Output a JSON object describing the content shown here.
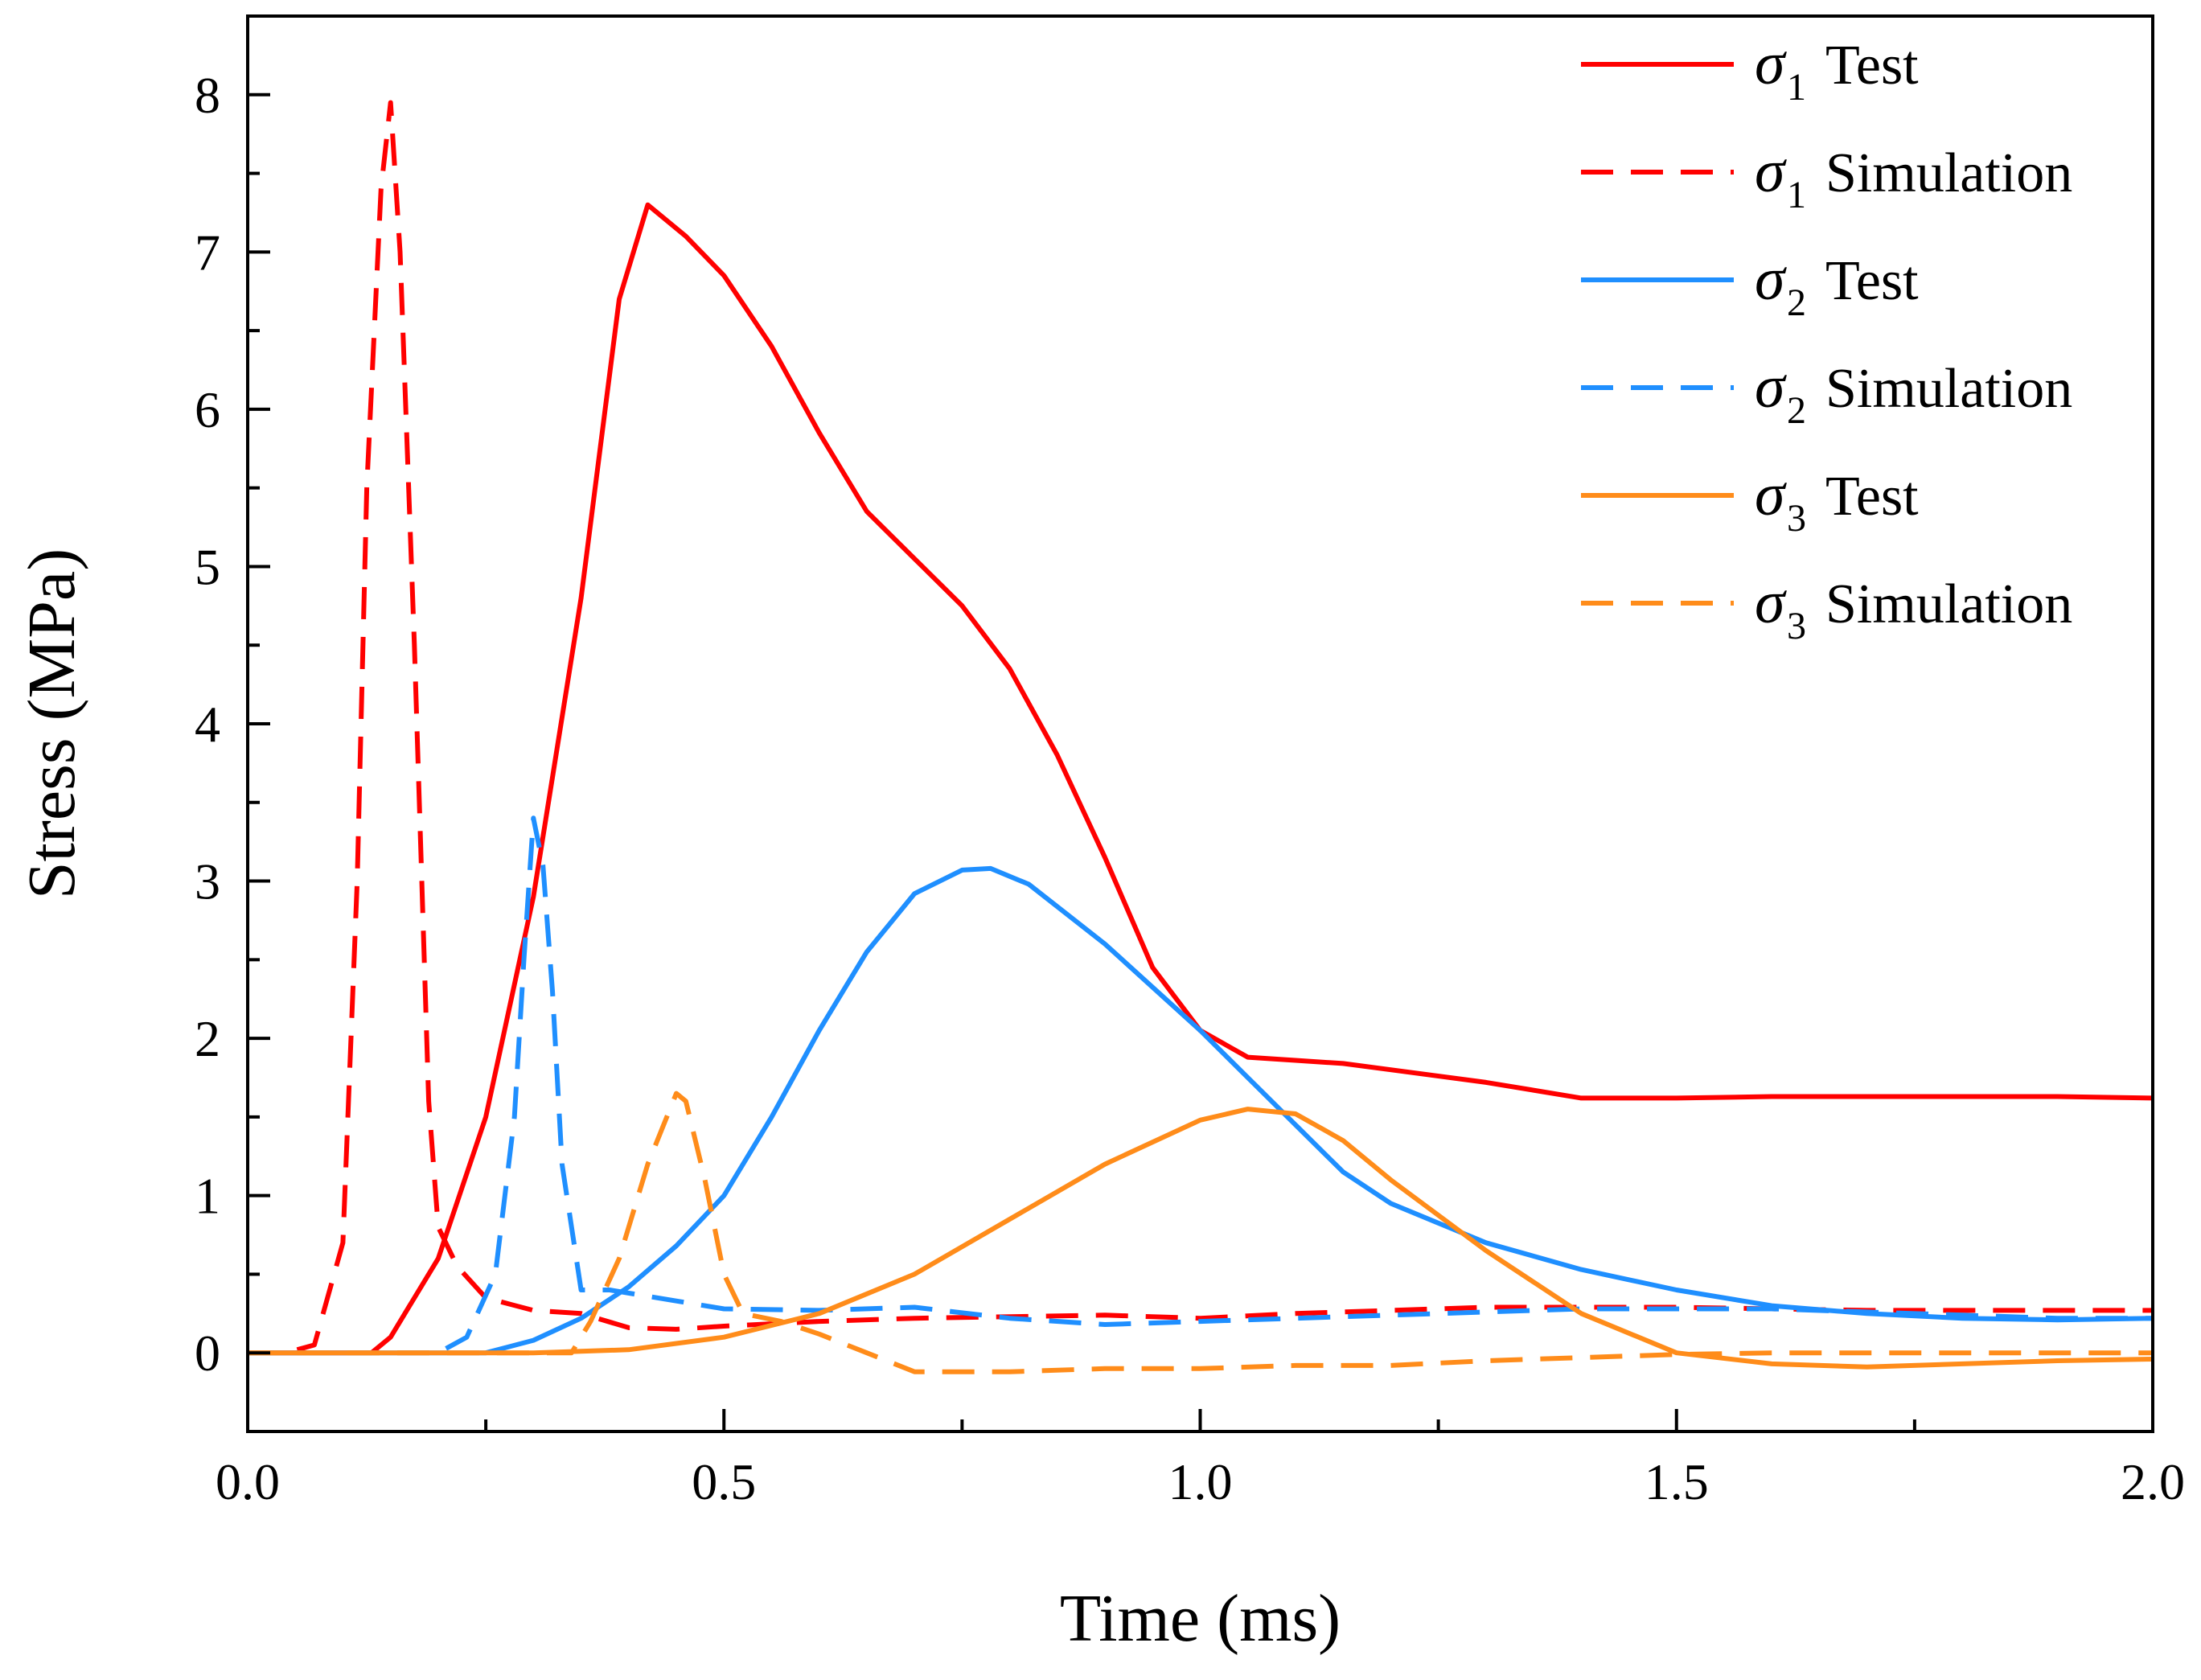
{
  "chart_data": {
    "type": "line",
    "xlabel": "Time (ms)",
    "ylabel": "Stress (MPa)",
    "xlim": [
      0.0,
      2.0
    ],
    "ylim": [
      -0.5,
      8.5
    ],
    "xticks": [
      0.0,
      0.5,
      1.0,
      1.5,
      2.0
    ],
    "xtick_labels": [
      "0.0",
      "0.5",
      "1.0",
      "1.5",
      "2.0"
    ],
    "yticks": [
      0,
      1,
      2,
      3,
      4,
      5,
      6,
      7,
      8
    ],
    "ytick_labels": [
      "0",
      "1",
      "2",
      "3",
      "4",
      "5",
      "6",
      "7",
      "8"
    ],
    "legend_position": "top-right",
    "series": [
      {
        "name": "σ1 Test",
        "symbol": "σ",
        "sub": "1",
        "label": "Test",
        "color": "#ff0000",
        "dash": "solid",
        "points": [
          [
            0,
            0
          ],
          [
            0.13,
            0
          ],
          [
            0.15,
            0.1
          ],
          [
            0.2,
            0.6
          ],
          [
            0.25,
            1.5
          ],
          [
            0.3,
            2.9
          ],
          [
            0.35,
            4.8
          ],
          [
            0.39,
            6.7
          ],
          [
            0.42,
            7.3
          ],
          [
            0.46,
            7.1
          ],
          [
            0.5,
            6.85
          ],
          [
            0.55,
            6.4
          ],
          [
            0.6,
            5.85
          ],
          [
            0.65,
            5.35
          ],
          [
            0.7,
            5.05
          ],
          [
            0.75,
            4.75
          ],
          [
            0.8,
            4.35
          ],
          [
            0.85,
            3.8
          ],
          [
            0.9,
            3.15
          ],
          [
            0.95,
            2.45
          ],
          [
            1.0,
            2.05
          ],
          [
            1.05,
            1.88
          ],
          [
            1.1,
            1.86
          ],
          [
            1.15,
            1.84
          ],
          [
            1.2,
            1.8
          ],
          [
            1.3,
            1.72
          ],
          [
            1.4,
            1.62
          ],
          [
            1.5,
            1.62
          ],
          [
            1.6,
            1.63
          ],
          [
            1.7,
            1.63
          ],
          [
            1.8,
            1.63
          ],
          [
            1.9,
            1.63
          ],
          [
            2.0,
            1.62
          ]
        ]
      },
      {
        "name": "σ1 Simulation",
        "symbol": "σ",
        "sub": "1",
        "label": "Simulation",
        "color": "#ff0000",
        "dash": "dashed",
        "points": [
          [
            0,
            0
          ],
          [
            0.04,
            0
          ],
          [
            0.07,
            0.05
          ],
          [
            0.1,
            0.7
          ],
          [
            0.115,
            3.0
          ],
          [
            0.125,
            5.5
          ],
          [
            0.14,
            7.4
          ],
          [
            0.15,
            7.95
          ],
          [
            0.16,
            7.0
          ],
          [
            0.175,
            4.5
          ],
          [
            0.19,
            1.6
          ],
          [
            0.2,
            0.8
          ],
          [
            0.22,
            0.55
          ],
          [
            0.25,
            0.35
          ],
          [
            0.3,
            0.27
          ],
          [
            0.35,
            0.25
          ],
          [
            0.4,
            0.16
          ],
          [
            0.45,
            0.15
          ],
          [
            0.5,
            0.17
          ],
          [
            0.6,
            0.2
          ],
          [
            0.7,
            0.22
          ],
          [
            0.8,
            0.23
          ],
          [
            0.9,
            0.24
          ],
          [
            1.0,
            0.22
          ],
          [
            1.1,
            0.25
          ],
          [
            1.2,
            0.27
          ],
          [
            1.3,
            0.29
          ],
          [
            1.4,
            0.29
          ],
          [
            1.5,
            0.29
          ],
          [
            1.6,
            0.28
          ],
          [
            1.7,
            0.27
          ],
          [
            1.8,
            0.27
          ],
          [
            1.9,
            0.27
          ],
          [
            2.0,
            0.27
          ]
        ]
      },
      {
        "name": "σ2 Test",
        "symbol": "σ",
        "sub": "2",
        "label": "Test",
        "color": "#1f8fff",
        "dash": "solid",
        "points": [
          [
            0,
            0
          ],
          [
            0.25,
            0
          ],
          [
            0.3,
            0.08
          ],
          [
            0.35,
            0.22
          ],
          [
            0.4,
            0.42
          ],
          [
            0.45,
            0.68
          ],
          [
            0.5,
            1.0
          ],
          [
            0.55,
            1.5
          ],
          [
            0.6,
            2.05
          ],
          [
            0.65,
            2.55
          ],
          [
            0.7,
            2.92
          ],
          [
            0.75,
            3.07
          ],
          [
            0.78,
            3.08
          ],
          [
            0.82,
            2.98
          ],
          [
            0.9,
            2.6
          ],
          [
            1.0,
            2.05
          ],
          [
            1.05,
            1.75
          ],
          [
            1.1,
            1.45
          ],
          [
            1.15,
            1.15
          ],
          [
            1.2,
            0.95
          ],
          [
            1.3,
            0.7
          ],
          [
            1.4,
            0.53
          ],
          [
            1.5,
            0.4
          ],
          [
            1.6,
            0.3
          ],
          [
            1.7,
            0.25
          ],
          [
            1.8,
            0.22
          ],
          [
            1.9,
            0.21
          ],
          [
            2.0,
            0.22
          ]
        ]
      },
      {
        "name": "σ2 Simulation",
        "symbol": "σ",
        "sub": "2",
        "label": "Simulation",
        "color": "#1f8fff",
        "dash": "dashed",
        "points": [
          [
            0,
            0
          ],
          [
            0.2,
            0
          ],
          [
            0.23,
            0.1
          ],
          [
            0.26,
            0.5
          ],
          [
            0.28,
            1.5
          ],
          [
            0.29,
            2.5
          ],
          [
            0.3,
            3.4
          ],
          [
            0.31,
            3.1
          ],
          [
            0.32,
            2.3
          ],
          [
            0.33,
            1.2
          ],
          [
            0.35,
            0.4
          ],
          [
            0.38,
            0.4
          ],
          [
            0.45,
            0.33
          ],
          [
            0.5,
            0.28
          ],
          [
            0.6,
            0.27
          ],
          [
            0.7,
            0.29
          ],
          [
            0.8,
            0.22
          ],
          [
            0.9,
            0.18
          ],
          [
            1.0,
            0.2
          ],
          [
            1.1,
            0.22
          ],
          [
            1.2,
            0.24
          ],
          [
            1.3,
            0.26
          ],
          [
            1.4,
            0.28
          ],
          [
            1.5,
            0.28
          ],
          [
            1.6,
            0.28
          ],
          [
            1.7,
            0.26
          ],
          [
            1.8,
            0.24
          ],
          [
            1.9,
            0.22
          ],
          [
            2.0,
            0.22
          ]
        ]
      },
      {
        "name": "σ3 Test",
        "symbol": "σ",
        "sub": "3",
        "label": "Test",
        "color": "#ff8c1a",
        "dash": "solid",
        "points": [
          [
            0,
            0
          ],
          [
            0.3,
            0
          ],
          [
            0.4,
            0.02
          ],
          [
            0.5,
            0.1
          ],
          [
            0.6,
            0.25
          ],
          [
            0.7,
            0.5
          ],
          [
            0.8,
            0.85
          ],
          [
            0.9,
            1.2
          ],
          [
            1.0,
            1.48
          ],
          [
            1.05,
            1.55
          ],
          [
            1.1,
            1.52
          ],
          [
            1.15,
            1.35
          ],
          [
            1.2,
            1.1
          ],
          [
            1.3,
            0.65
          ],
          [
            1.4,
            0.25
          ],
          [
            1.5,
            0.0
          ],
          [
            1.6,
            -0.07
          ],
          [
            1.7,
            -0.09
          ],
          [
            1.8,
            -0.07
          ],
          [
            1.9,
            -0.05
          ],
          [
            2.0,
            -0.04
          ]
        ]
      },
      {
        "name": "σ3 Simulation",
        "symbol": "σ",
        "sub": "3",
        "label": "Simulation",
        "color": "#ff8c1a",
        "dash": "dashed",
        "points": [
          [
            0,
            0
          ],
          [
            0.34,
            0
          ],
          [
            0.36,
            0.2
          ],
          [
            0.39,
            0.6
          ],
          [
            0.42,
            1.2
          ],
          [
            0.45,
            1.65
          ],
          [
            0.46,
            1.6
          ],
          [
            0.48,
            1.1
          ],
          [
            0.5,
            0.5
          ],
          [
            0.52,
            0.25
          ],
          [
            0.56,
            0.2
          ],
          [
            0.6,
            0.12
          ],
          [
            0.65,
            0.0
          ],
          [
            0.7,
            -0.12
          ],
          [
            0.8,
            -0.12
          ],
          [
            0.9,
            -0.1
          ],
          [
            1.0,
            -0.1
          ],
          [
            1.1,
            -0.08
          ],
          [
            1.2,
            -0.08
          ],
          [
            1.3,
            -0.05
          ],
          [
            1.4,
            -0.03
          ],
          [
            1.5,
            -0.01
          ],
          [
            1.6,
            0.0
          ],
          [
            1.7,
            0.0
          ],
          [
            1.8,
            0.0
          ],
          [
            1.9,
            0.0
          ],
          [
            2.0,
            0.0
          ]
        ]
      }
    ]
  }
}
